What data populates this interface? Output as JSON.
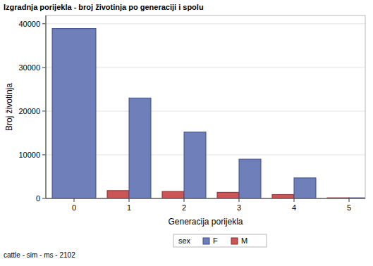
{
  "chart_data": {
    "type": "bar",
    "title": "Izgradnja porijekla - broj životinja po generaciji i spolu",
    "x_label": "Generacija porijekla",
    "y_label": "Broj životinja",
    "annotations": [
      "cattle - sim - ms - 2102"
    ],
    "legend_title": "sex",
    "legend": "bottom",
    "categories": [
      "0",
      "1",
      "2",
      "3",
      "4",
      "5"
    ],
    "series": [
      {
        "name": "F",
        "color": "#6f7fba",
        "values": [
          38900,
          23000,
          15200,
          9000,
          4700,
          150
        ]
      },
      {
        "name": "M",
        "color": "#cc5656",
        "values": [
          null,
          1800,
          1600,
          1400,
          900,
          150
        ]
      }
    ],
    "ylim": [
      0,
      41900
    ],
    "yticks": [
      0,
      10000,
      20000,
      30000,
      40000
    ],
    "grid": true
  }
}
